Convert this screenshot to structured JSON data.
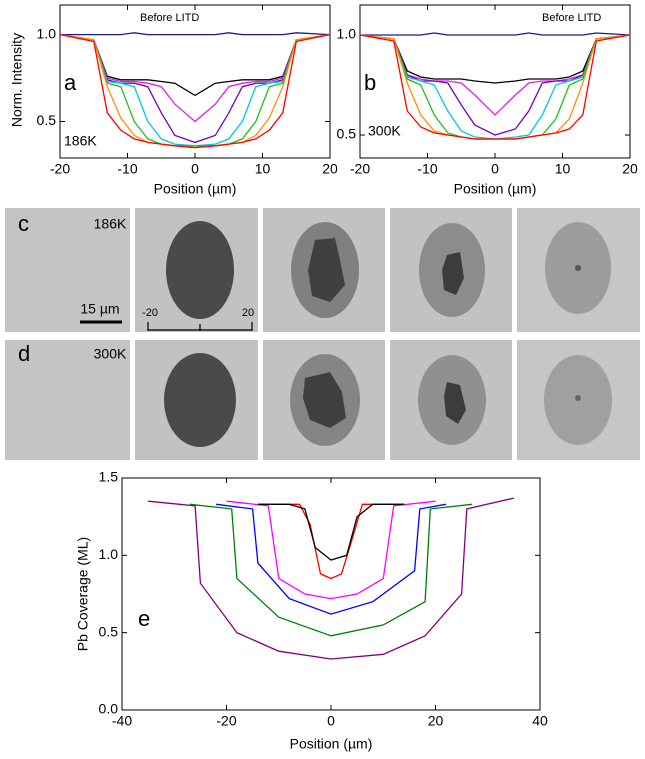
{
  "chart_data": [
    {
      "type": "line",
      "panel_label": "a",
      "temperature": "186K",
      "xlabel": "Position (µm)",
      "ylabel": "Norm. Intensity",
      "xlim": [
        -20,
        20
      ],
      "xticks": [
        -20,
        -10,
        0,
        10,
        20
      ],
      "ylim": [
        0.29,
        1.17
      ],
      "yticks": [
        0.5,
        {
          "value": 1,
          "label": "1.0"
        }
      ],
      "x": [
        -20,
        -15,
        -13,
        -11,
        -9,
        -7,
        -5,
        -3,
        0,
        3,
        5,
        7,
        9,
        11,
        13,
        15,
        20
      ],
      "series": [
        {
          "name": "Before LITD",
          "color": "#1a1a8c",
          "values": [
            1.0,
            1.0,
            1.0,
            1.0,
            1.01,
            1.0,
            1.0,
            1.0,
            1.0,
            1.0,
            1.01,
            1.0,
            1.0,
            1.0,
            1.0,
            1.01,
            1.0
          ]
        },
        {
          "color": "#000000",
          "values": [
            1.0,
            0.97,
            0.76,
            0.74,
            0.74,
            0.74,
            0.73,
            0.72,
            0.65,
            0.72,
            0.73,
            0.74,
            0.74,
            0.74,
            0.76,
            0.97,
            1.0
          ]
        },
        {
          "color": "#e020e0",
          "values": [
            1.0,
            0.97,
            0.75,
            0.73,
            0.73,
            0.72,
            0.7,
            0.6,
            0.5,
            0.6,
            0.7,
            0.72,
            0.73,
            0.73,
            0.75,
            0.97,
            1.0
          ]
        },
        {
          "color": "#7a00c0",
          "values": [
            1.0,
            0.97,
            0.74,
            0.72,
            0.72,
            0.7,
            0.55,
            0.42,
            0.38,
            0.42,
            0.55,
            0.7,
            0.72,
            0.72,
            0.74,
            0.97,
            1.0
          ]
        },
        {
          "color": "#00c8e0",
          "values": [
            1.0,
            0.97,
            0.73,
            0.72,
            0.7,
            0.5,
            0.4,
            0.37,
            0.36,
            0.37,
            0.4,
            0.5,
            0.7,
            0.72,
            0.73,
            0.97,
            1.0
          ]
        },
        {
          "color": "#20c020",
          "values": [
            1.0,
            0.97,
            0.72,
            0.7,
            0.5,
            0.4,
            0.37,
            0.36,
            0.36,
            0.36,
            0.37,
            0.4,
            0.5,
            0.7,
            0.72,
            0.97,
            1.0
          ]
        },
        {
          "color": "#ff9000",
          "values": [
            1.0,
            0.97,
            0.7,
            0.52,
            0.42,
            0.38,
            0.37,
            0.36,
            0.35,
            0.36,
            0.37,
            0.38,
            0.42,
            0.52,
            0.7,
            0.97,
            1.0
          ]
        },
        {
          "color": "#ff0000",
          "values": [
            1.0,
            0.96,
            0.55,
            0.45,
            0.4,
            0.38,
            0.37,
            0.36,
            0.35,
            0.36,
            0.37,
            0.38,
            0.4,
            0.45,
            0.55,
            0.96,
            1.0
          ]
        }
      ]
    },
    {
      "type": "line",
      "panel_label": "b",
      "temperature": "300K",
      "xlabel": "Position (µm)",
      "xlim": [
        -20,
        20
      ],
      "xticks": [
        -20,
        -10,
        0,
        10,
        20
      ],
      "ylim": [
        0.385,
        1.15
      ],
      "yticks": [
        0.5,
        {
          "value": 1,
          "label": "1.0"
        }
      ],
      "x": [
        -20,
        -15,
        -13,
        -11,
        -9,
        -7,
        -5,
        -3,
        0,
        3,
        5,
        7,
        9,
        11,
        13,
        15,
        20
      ],
      "series": [
        {
          "name": "Before LITD",
          "color": "#1a1a8c",
          "values": [
            1.0,
            1.0,
            1.0,
            1.0,
            1.01,
            1.0,
            1.0,
            1.0,
            1.0,
            1.0,
            1.01,
            1.0,
            1.0,
            1.0,
            1.0,
            1.01,
            1.0
          ]
        },
        {
          "color": "#000000",
          "values": [
            1.0,
            0.98,
            0.82,
            0.79,
            0.78,
            0.78,
            0.78,
            0.77,
            0.76,
            0.77,
            0.78,
            0.78,
            0.78,
            0.79,
            0.82,
            0.98,
            1.0
          ]
        },
        {
          "color": "#e020e0",
          "values": [
            1.0,
            0.98,
            0.8,
            0.78,
            0.77,
            0.77,
            0.76,
            0.7,
            0.6,
            0.7,
            0.76,
            0.77,
            0.77,
            0.78,
            0.8,
            0.98,
            1.0
          ]
        },
        {
          "color": "#7a00c0",
          "values": [
            1.0,
            0.98,
            0.8,
            0.77,
            0.77,
            0.76,
            0.65,
            0.55,
            0.5,
            0.53,
            0.62,
            0.76,
            0.77,
            0.77,
            0.8,
            0.98,
            1.0
          ]
        },
        {
          "color": "#00c8e0",
          "values": [
            1.0,
            0.98,
            0.79,
            0.77,
            0.75,
            0.62,
            0.52,
            0.49,
            0.48,
            0.49,
            0.5,
            0.6,
            0.75,
            0.77,
            0.79,
            0.98,
            1.0
          ]
        },
        {
          "color": "#20c020",
          "values": [
            1.0,
            0.98,
            0.78,
            0.75,
            0.6,
            0.51,
            0.49,
            0.48,
            0.48,
            0.48,
            0.49,
            0.5,
            0.58,
            0.75,
            0.78,
            0.98,
            1.0
          ]
        },
        {
          "color": "#ff9000",
          "values": [
            1.0,
            0.98,
            0.76,
            0.6,
            0.52,
            0.5,
            0.49,
            0.48,
            0.48,
            0.48,
            0.49,
            0.5,
            0.51,
            0.58,
            0.76,
            0.98,
            1.0
          ]
        },
        {
          "color": "#ff0000",
          "values": [
            1.0,
            0.97,
            0.62,
            0.54,
            0.51,
            0.5,
            0.49,
            0.48,
            0.48,
            0.48,
            0.49,
            0.5,
            0.51,
            0.53,
            0.6,
            0.97,
            1.0
          ]
        }
      ]
    },
    {
      "type": "line",
      "panel_label": "e",
      "xlabel": "Position (µm)",
      "ylabel": "Pb Coverage (ML)",
      "xlim": [
        -40,
        40
      ],
      "xticks": [
        -40,
        -20,
        0,
        20,
        40
      ],
      "ylim": [
        0,
        1.5
      ],
      "yticks": [
        {
          "value": 0,
          "label": "0.0"
        },
        0.5,
        {
          "value": 1,
          "label": "1.0"
        },
        1.5
      ],
      "series": [
        {
          "color": "#800080",
          "x": [
            -35,
            -26,
            -25,
            -18,
            -10,
            0,
            10,
            18,
            25,
            26,
            35
          ],
          "values": [
            1.35,
            1.32,
            0.82,
            0.5,
            0.38,
            0.33,
            0.36,
            0.48,
            0.75,
            1.3,
            1.37
          ]
        },
        {
          "color": "#008000",
          "x": [
            -27,
            -19,
            -18,
            -10,
            0,
            10,
            18,
            19,
            27
          ],
          "values": [
            1.33,
            1.3,
            0.85,
            0.6,
            0.48,
            0.55,
            0.7,
            1.3,
            1.33
          ]
        },
        {
          "color": "#0000ff",
          "x": [
            -22,
            -15,
            -14,
            -8,
            0,
            8,
            16,
            17,
            22
          ],
          "values": [
            1.33,
            1.3,
            0.95,
            0.72,
            0.62,
            0.7,
            0.9,
            1.3,
            1.33
          ]
        },
        {
          "color": "#ff00ff",
          "x": [
            -20,
            -12,
            -10,
            -5,
            0,
            5,
            10,
            12,
            20
          ],
          "values": [
            1.35,
            1.32,
            0.85,
            0.75,
            0.72,
            0.75,
            0.85,
            1.32,
            1.35
          ]
        },
        {
          "color": "#ff0000",
          "x": [
            -14,
            -6,
            -4,
            -2,
            0,
            2,
            4,
            6,
            14
          ],
          "values": [
            1.33,
            1.33,
            1.2,
            0.88,
            0.85,
            0.88,
            1.1,
            1.33,
            1.33
          ]
        },
        {
          "color": "#000000",
          "x": [
            -14,
            -8,
            -5,
            -3,
            0,
            3,
            5,
            8,
            14
          ],
          "values": [
            1.33,
            1.33,
            1.3,
            1.05,
            0.97,
            1.0,
            1.25,
            1.33,
            1.33
          ]
        }
      ]
    }
  ],
  "images": {
    "rows": [
      {
        "letter": "c",
        "temperature": "186K"
      },
      {
        "letter": "d",
        "temperature": "300K"
      }
    ],
    "scale_bar": "15 µm",
    "ruler_ticks": [
      -20,
      20
    ]
  }
}
